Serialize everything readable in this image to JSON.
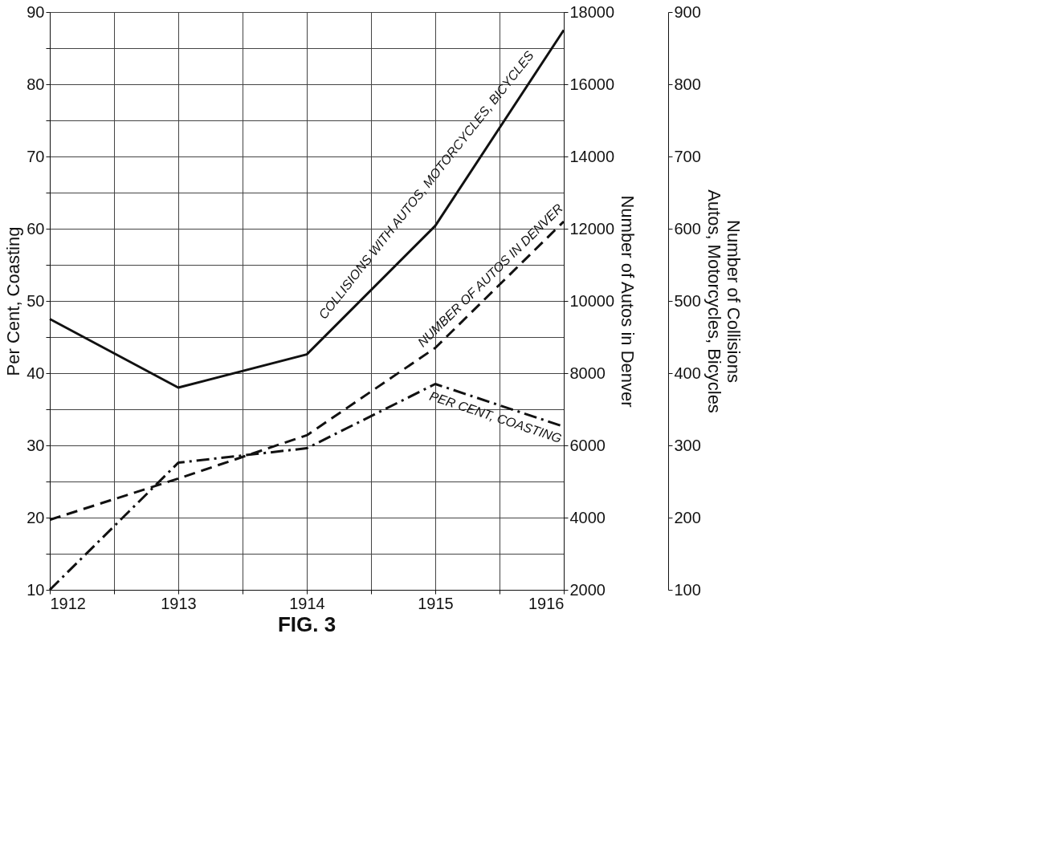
{
  "chart_data": {
    "type": "line",
    "title": "FIG. 3",
    "x": [
      1912,
      1913,
      1914,
      1915,
      1916
    ],
    "xlim": [
      1912,
      1916
    ],
    "xticks": [
      1912,
      {
        "value": 1912.5,
        "label": null
      },
      1913,
      {
        "value": 1913.5,
        "label": null
      },
      1914,
      {
        "value": 1914.5,
        "label": null
      },
      1915,
      {
        "value": 1915.5,
        "label": null
      },
      1916
    ],
    "ylabel": "Per Cent, Coasting",
    "y2label": "Number of Autos in Denver",
    "y3label": "Number of Collisions\nAutos, Motorcycles, Bicycles",
    "ylim": [
      10,
      90
    ],
    "yticks": [
      10,
      {
        "value": 15,
        "label": null
      },
      20,
      {
        "value": 25,
        "label": null
      },
      30,
      {
        "value": 35,
        "label": null
      },
      40,
      {
        "value": 45,
        "label": null
      },
      50,
      {
        "value": 55,
        "label": null
      },
      60,
      {
        "value": 65,
        "label": null
      },
      70,
      {
        "value": 75,
        "label": null
      },
      80,
      {
        "value": 85,
        "label": null
      },
      90
    ],
    "y2lim": [
      2000,
      18000
    ],
    "y2ticks": [
      2000,
      4000,
      6000,
      8000,
      10000,
      12000,
      14000,
      16000,
      18000
    ],
    "y3lim": [
      100,
      900
    ],
    "y3ticks": [
      100,
      200,
      300,
      400,
      500,
      600,
      700,
      800,
      900
    ],
    "grid": true,
    "series": [
      {
        "name": "COLLISIONS WITH AUTOS, MOTORCYCLES, BICYCLES",
        "color": "#111111",
        "axis": "y3",
        "line_style": "solid",
        "values": [
          475,
          380,
          426,
          604,
          875
        ]
      },
      {
        "name": "NUMBER OF AUTOS IN DENVER",
        "color": "#111111",
        "axis": "y2",
        "line_style": "dashed",
        "values": [
          3940,
          5080,
          6280,
          8700,
          12200
        ]
      },
      {
        "name": "PER CENT, COASTING",
        "color": "#111111",
        "axis": "y",
        "line_style": "dashdot",
        "values": [
          10,
          27.6,
          29.6,
          38.5,
          32.6
        ]
      }
    ]
  }
}
